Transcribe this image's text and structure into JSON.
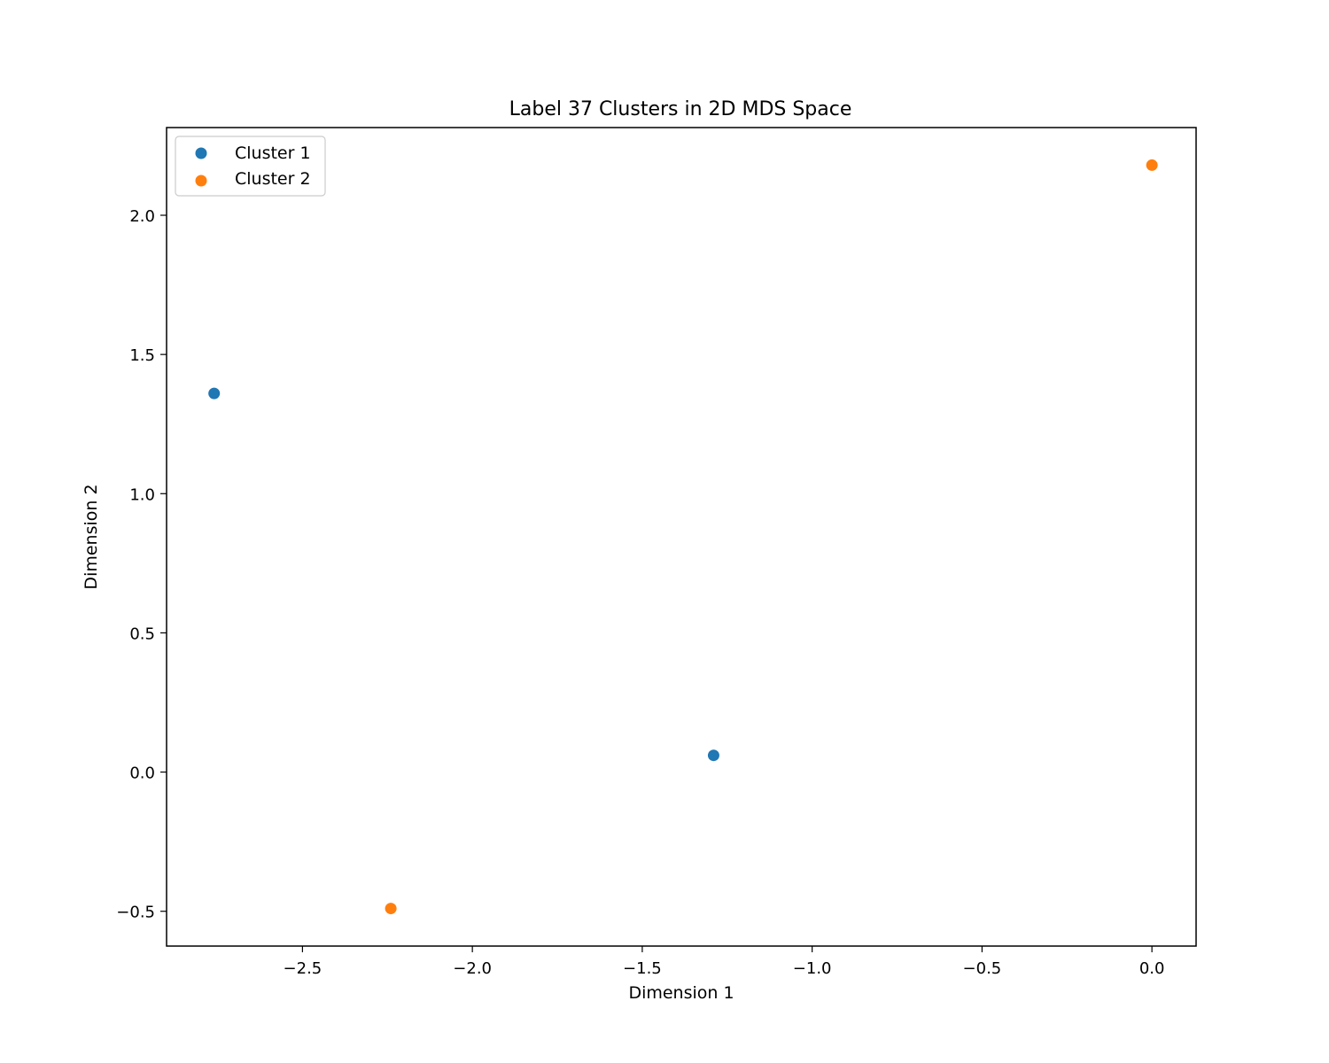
{
  "chart_data": {
    "type": "scatter",
    "title": "Label 37 Clusters in 2D MDS Space",
    "xlabel": "Dimension 1",
    "ylabel": "Dimension 2",
    "xlim": [
      -2.9,
      0.13
    ],
    "ylim": [
      -0.625,
      2.315
    ],
    "xticks": [
      -2.5,
      -2.0,
      -1.5,
      -1.0,
      -0.5,
      0.0
    ],
    "xtick_labels": [
      "−2.5",
      "−2.0",
      "−1.5",
      "−1.0",
      "−0.5",
      "0.0"
    ],
    "yticks": [
      -0.5,
      0.0,
      0.5,
      1.0,
      1.5,
      2.0
    ],
    "ytick_labels": [
      "−0.5",
      "0.0",
      "0.5",
      "1.0",
      "1.5",
      "2.0"
    ],
    "grid": false,
    "legend_position": "top-left",
    "series": [
      {
        "name": "Cluster 1",
        "color": "#1f77b4",
        "points": [
          {
            "x": -2.76,
            "y": 1.36
          },
          {
            "x": -1.29,
            "y": 0.06
          }
        ]
      },
      {
        "name": "Cluster 2",
        "color": "#ff7f0e",
        "points": [
          {
            "x": -2.24,
            "y": -0.49
          },
          {
            "x": 0.0,
            "y": 2.18
          }
        ]
      }
    ]
  }
}
